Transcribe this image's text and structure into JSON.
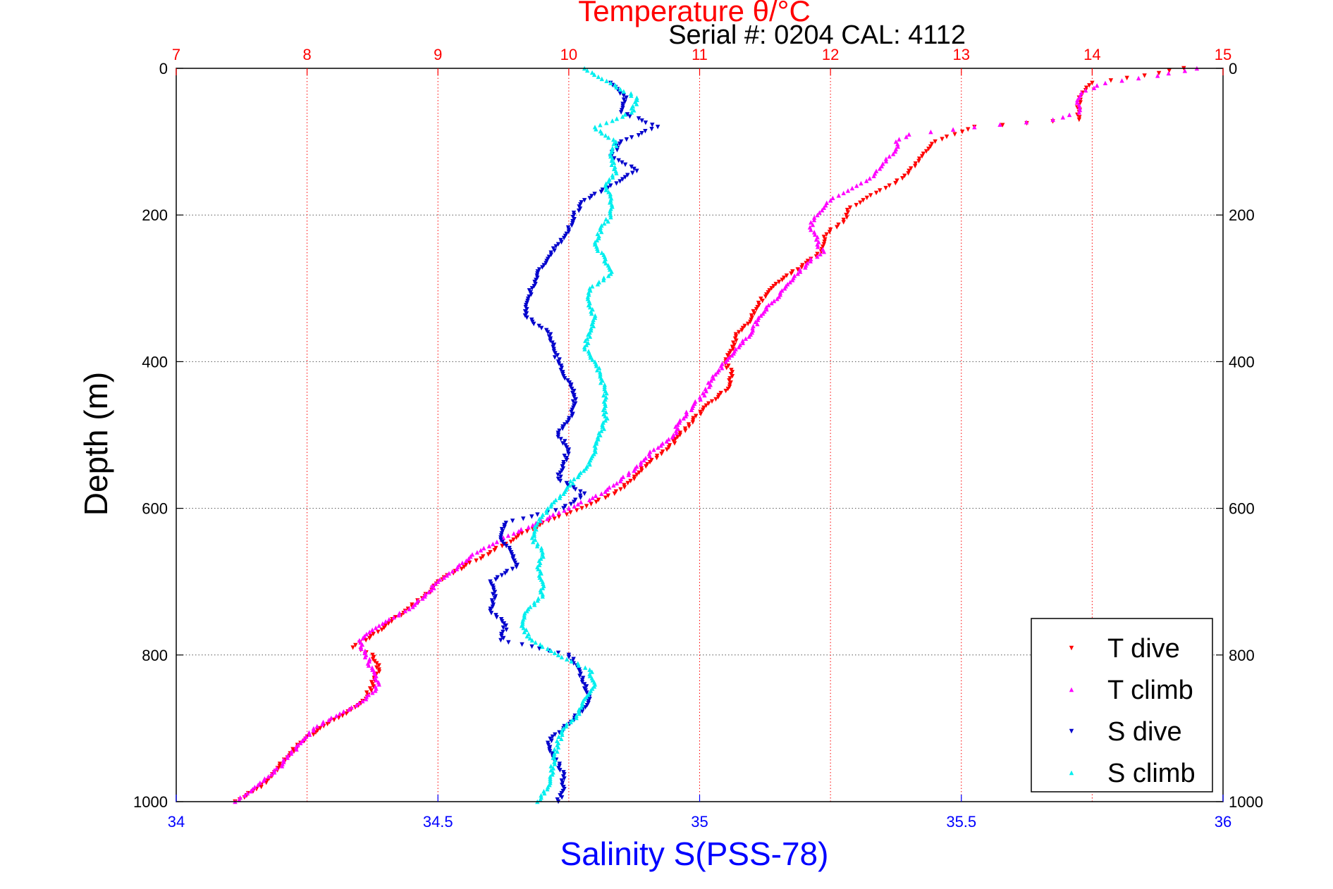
{
  "chart_data": {
    "type": "scatter",
    "title": "Temperature θ/°C",
    "subtitle": "Serial #: 0204  CAL: 4112",
    "ylabel": "Depth (m)",
    "xlabel_bottom": "Salinity S(PSS-78)",
    "ylim": [
      0,
      1000
    ],
    "y_reversed": true,
    "y_ticks": [
      0,
      200,
      400,
      600,
      800,
      1000
    ],
    "x_bottom": {
      "name": "Salinity",
      "lim": [
        34,
        36
      ],
      "ticks": [
        "34",
        "34.5",
        "35",
        "35.5",
        "36"
      ]
    },
    "x_top": {
      "name": "Temperature",
      "lim": [
        7,
        15
      ],
      "ticks": [
        "7",
        "8",
        "9",
        "10",
        "11",
        "12",
        "13",
        "14",
        "15"
      ]
    },
    "grid": {
      "horizontal": true,
      "vertical_top_axis": true
    },
    "legend": {
      "placement": "bottom-right"
    },
    "series": [
      {
        "name": "T dive",
        "axis": "top",
        "color": "#ff0000",
        "marker": "triangle-down",
        "depth": [
          0,
          10,
          20,
          30,
          40,
          50,
          60,
          70,
          75,
          80,
          90,
          100,
          110,
          120,
          130,
          140,
          150,
          160,
          170,
          180,
          190,
          200,
          210,
          220,
          230,
          240,
          250,
          260,
          280,
          300,
          320,
          340,
          360,
          380,
          400,
          420,
          440,
          460,
          480,
          500,
          520,
          540,
          560,
          580,
          600,
          620,
          640,
          660,
          680,
          700,
          720,
          740,
          760,
          780,
          790,
          800,
          820,
          840,
          860,
          880,
          900,
          920,
          940,
          960,
          980,
          1000
        ],
        "temperature": [
          14.7,
          14.4,
          14.0,
          13.95,
          13.9,
          13.9,
          13.9,
          13.9,
          13.5,
          13.1,
          12.95,
          12.8,
          12.75,
          12.7,
          12.65,
          12.6,
          12.55,
          12.45,
          12.35,
          12.25,
          12.15,
          12.12,
          12.1,
          12.0,
          11.95,
          11.95,
          11.93,
          11.85,
          11.7,
          11.55,
          11.45,
          11.4,
          11.3,
          11.25,
          11.2,
          11.25,
          11.2,
          11.05,
          10.95,
          10.85,
          10.75,
          10.6,
          10.5,
          10.35,
          10.1,
          9.8,
          9.6,
          9.4,
          9.2,
          9.0,
          8.9,
          8.75,
          8.6,
          8.45,
          8.35,
          8.5,
          8.55,
          8.5,
          8.45,
          8.3,
          8.1,
          7.95,
          7.85,
          7.75,
          7.65,
          7.45
        ]
      },
      {
        "name": "T climb",
        "axis": "top",
        "color": "#ff00ff",
        "marker": "triangle-up",
        "depth": [
          0,
          10,
          20,
          30,
          40,
          50,
          60,
          70,
          80,
          90,
          100,
          110,
          120,
          130,
          140,
          150,
          160,
          170,
          180,
          190,
          200,
          210,
          220,
          230,
          240,
          250,
          260,
          280,
          300,
          320,
          340,
          360,
          380,
          400,
          420,
          440,
          460,
          480,
          500,
          520,
          540,
          560,
          580,
          600,
          620,
          640,
          660,
          680,
          700,
          720,
          740,
          760,
          780,
          800,
          820,
          840,
          860,
          880,
          900,
          920,
          940,
          960,
          980,
          1000
        ],
        "temperature": [
          14.8,
          14.5,
          14.1,
          13.95,
          13.9,
          13.9,
          13.9,
          13.7,
          13.1,
          12.6,
          12.5,
          12.5,
          12.45,
          12.4,
          12.35,
          12.3,
          12.2,
          12.1,
          12.0,
          11.95,
          11.9,
          11.85,
          11.85,
          11.9,
          11.9,
          11.95,
          11.85,
          11.75,
          11.65,
          11.55,
          11.45,
          11.4,
          11.3,
          11.2,
          11.1,
          11.05,
          10.95,
          10.85,
          10.8,
          10.65,
          10.55,
          10.4,
          10.25,
          10.0,
          9.75,
          9.5,
          9.3,
          9.15,
          9.0,
          8.9,
          8.75,
          8.55,
          8.4,
          8.45,
          8.5,
          8.55,
          8.45,
          8.25,
          8.05,
          7.95,
          7.85,
          7.75,
          7.6,
          7.45
        ]
      },
      {
        "name": "S dive",
        "axis": "bottom",
        "color": "#0000cc",
        "marker": "triangle-down",
        "depth": [
          20,
          40,
          60,
          80,
          100,
          120,
          140,
          160,
          180,
          200,
          220,
          240,
          260,
          280,
          300,
          320,
          340,
          360,
          380,
          400,
          420,
          440,
          460,
          480,
          500,
          520,
          540,
          560,
          580,
          600,
          620,
          640,
          660,
          680,
          700,
          720,
          740,
          760,
          780,
          800,
          820,
          840,
          860,
          880,
          900,
          920,
          940,
          960,
          980,
          1000
        ],
        "salinity": [
          34.83,
          34.86,
          34.85,
          34.92,
          34.85,
          34.83,
          34.88,
          34.83,
          34.78,
          34.76,
          34.75,
          34.73,
          34.71,
          34.69,
          34.68,
          34.67,
          34.67,
          34.71,
          34.72,
          34.73,
          34.74,
          34.76,
          34.76,
          34.75,
          34.73,
          34.75,
          34.74,
          34.73,
          34.78,
          34.74,
          34.63,
          34.62,
          34.64,
          34.65,
          34.6,
          34.61,
          34.6,
          34.63,
          34.62,
          34.75,
          34.77,
          34.78,
          34.79,
          34.77,
          34.74,
          34.71,
          34.72,
          34.74,
          34.74,
          34.73
        ]
      },
      {
        "name": "S climb",
        "axis": "bottom",
        "color": "#00eeee",
        "marker": "triangle-up",
        "depth": [
          0,
          20,
          40,
          60,
          80,
          100,
          120,
          140,
          160,
          180,
          200,
          220,
          240,
          260,
          280,
          300,
          320,
          340,
          360,
          380,
          400,
          420,
          440,
          460,
          480,
          500,
          520,
          540,
          560,
          580,
          600,
          620,
          640,
          660,
          680,
          700,
          720,
          740,
          760,
          780,
          800,
          820,
          840,
          860,
          880,
          900,
          920,
          940,
          960,
          980,
          1000
        ],
        "salinity": [
          34.78,
          34.83,
          34.88,
          34.87,
          34.8,
          34.84,
          34.83,
          34.84,
          34.82,
          34.83,
          34.83,
          34.81,
          34.8,
          34.82,
          34.83,
          34.79,
          34.79,
          34.8,
          34.79,
          34.78,
          34.8,
          34.81,
          34.82,
          34.82,
          34.82,
          34.81,
          34.8,
          34.79,
          34.76,
          34.74,
          34.71,
          34.69,
          34.68,
          34.7,
          34.69,
          34.7,
          34.7,
          34.67,
          34.66,
          34.68,
          34.73,
          34.79,
          34.8,
          34.78,
          34.77,
          34.74,
          34.73,
          34.72,
          34.72,
          34.71,
          34.69
        ]
      }
    ]
  }
}
